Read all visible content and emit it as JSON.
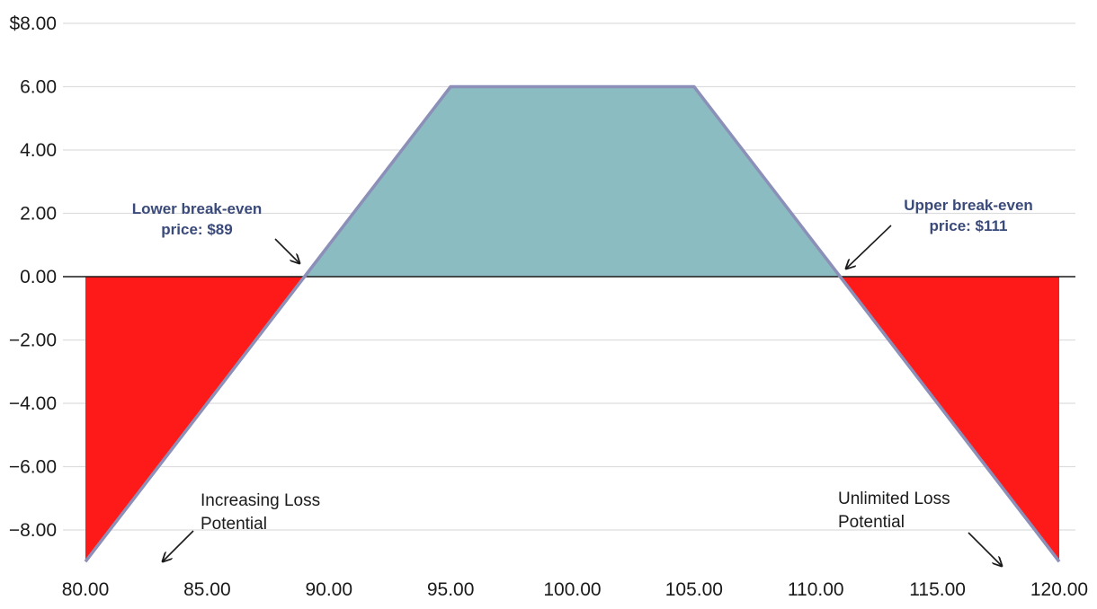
{
  "chart_data": {
    "type": "area",
    "title": "",
    "xlabel": "",
    "ylabel": "",
    "xlim": [
      80,
      120
    ],
    "ylim": [
      -9,
      8
    ],
    "x_ticks": [
      "80.00",
      "85.00",
      "90.00",
      "95.00",
      "100.00",
      "105.00",
      "110.00",
      "115.00",
      "120.00"
    ],
    "y_ticks": [
      "$8.00",
      "6.00",
      "4.00",
      "2.00",
      "0.00",
      "−2.00",
      "−4.00",
      "−6.00",
      "−8.00"
    ],
    "grid": "horizontal",
    "series": [
      {
        "x": [
          80,
          89,
          95,
          105,
          111,
          120
        ],
        "y": [
          -9,
          0,
          6,
          6,
          0,
          -9
        ]
      }
    ],
    "colors": {
      "profit": "#8bbcc2",
      "loss": "#ff1a1a",
      "line": "#8c90b8",
      "zero_line": "#1a1a1a",
      "grid": "#dddddd",
      "annotation_bold": "#3a4a7a"
    },
    "annotations": [
      {
        "lines": [
          "Lower break-even",
          "price: $89"
        ],
        "style": "bold",
        "x": 89,
        "y": 0
      },
      {
        "lines": [
          "Upper break-even",
          "price: $111"
        ],
        "style": "bold",
        "x": 111,
        "y": 0
      },
      {
        "lines": [
          "Increasing Loss",
          "Potential"
        ],
        "style": "normal",
        "x": 83,
        "y": -9
      },
      {
        "lines": [
          "Unlimited Loss",
          "Potential"
        ],
        "style": "normal",
        "x": 118,
        "y": -9
      }
    ]
  }
}
